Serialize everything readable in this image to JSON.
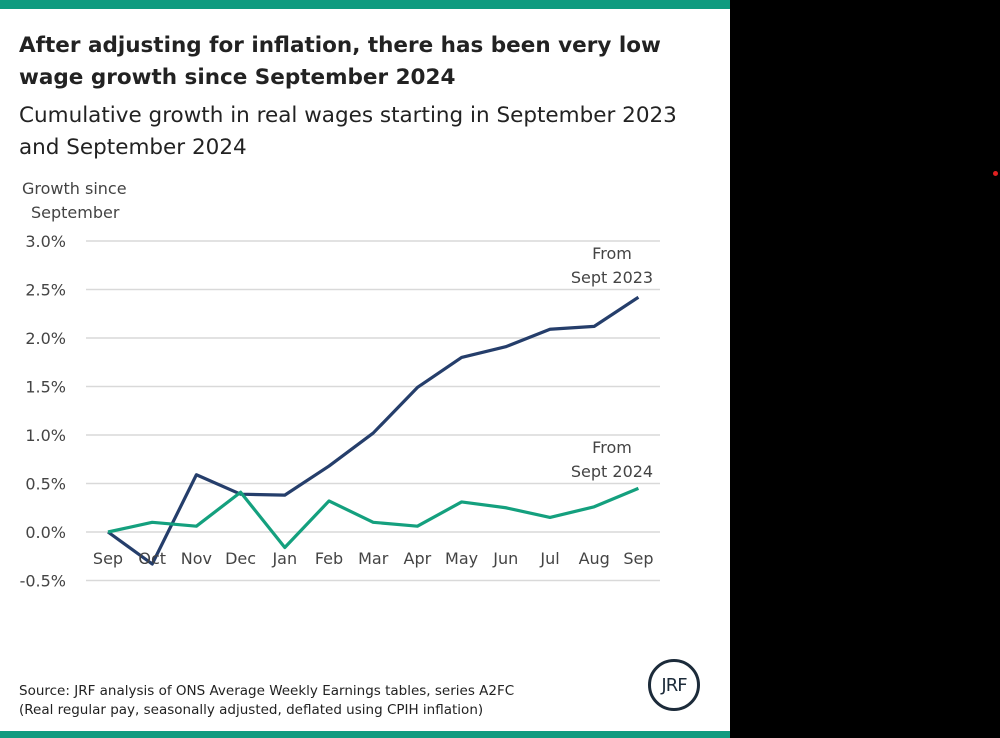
{
  "title": "After adjusting for inflation, there has been very low wage growth since September 2024",
  "subtitle": "Cumulative growth in real wages starting in September 2023 and September 2024",
  "source_lines": [
    "Source: JRF analysis of ONS Average Weekly Earnings tables, series A2FC",
    "(Real regular pay, seasonally adjusted, deflated using CPIH inflation)"
  ],
  "logo": "JRF",
  "colors": {
    "accent": "#0f9b7f",
    "series_2023": "#253e6b",
    "series_2024": "#14a07e"
  },
  "chart_data": {
    "type": "line",
    "title": "",
    "ylabel_lines": [
      "Growth since",
      "September"
    ],
    "xlabel": "",
    "categories": [
      "Sep",
      "Oct",
      "Nov",
      "Dec",
      "Jan",
      "Feb",
      "Mar",
      "Apr",
      "May",
      "Jun",
      "Jul",
      "Aug",
      "Sep"
    ],
    "yticks": [
      "3.0%",
      "2.5%",
      "2.0%",
      "1.5%",
      "1.0%",
      "0.5%",
      "0.0%",
      "-0.5%"
    ],
    "ytick_values": [
      3.0,
      2.5,
      2.0,
      1.5,
      1.0,
      0.5,
      0.0,
      -0.5
    ],
    "ylim": [
      -0.5,
      3.0
    ],
    "grid": true,
    "series": [
      {
        "name": "From Sept 2023",
        "label_lines": [
          "From",
          "Sept 2023"
        ],
        "color": "#253e6b",
        "values": [
          0.0,
          -0.33,
          0.59,
          0.39,
          0.38,
          0.68,
          1.02,
          1.49,
          1.8,
          1.91,
          2.09,
          2.12,
          2.42
        ]
      },
      {
        "name": "From Sept 2024",
        "label_lines": [
          "From",
          "Sept 2024"
        ],
        "color": "#14a07e",
        "values": [
          0.0,
          0.1,
          0.06,
          0.41,
          -0.16,
          0.32,
          0.1,
          0.06,
          0.31,
          0.25,
          0.15,
          0.26,
          0.45
        ]
      }
    ]
  }
}
